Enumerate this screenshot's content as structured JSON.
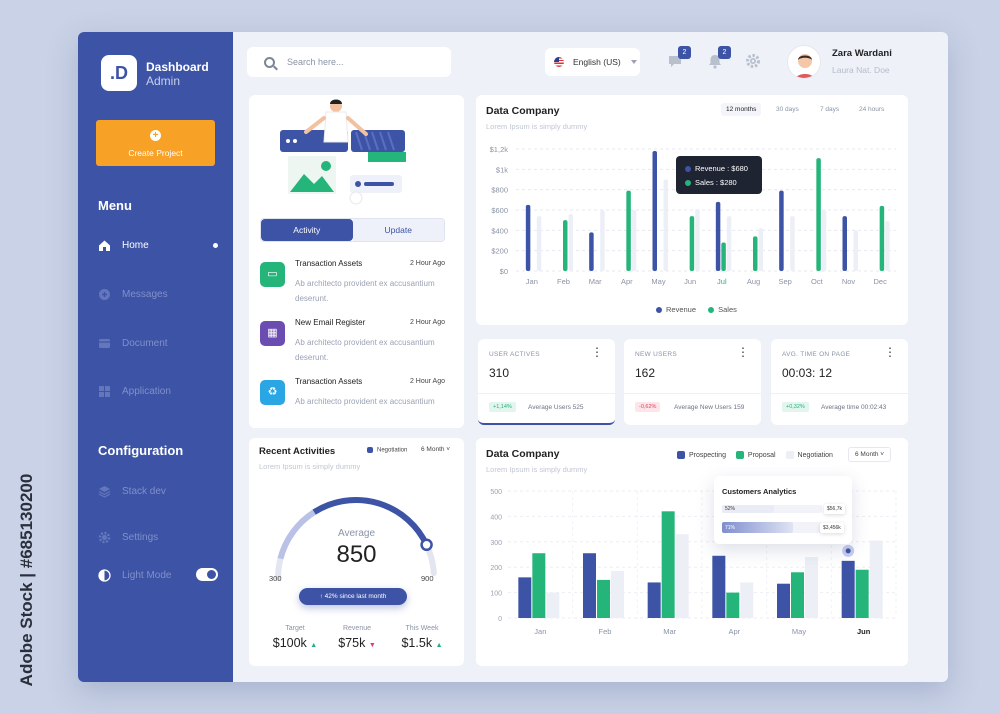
{
  "watermark": {
    "text": "Adobe Stock | #685130200"
  },
  "brand": {
    "logo": ".D",
    "line1": "Dashboard",
    "line2": "Admin"
  },
  "sidebar": {
    "create_label": "Create Project",
    "menu_title": "Menu",
    "items": [
      {
        "label": "Home",
        "icon": "home-icon",
        "active": true
      },
      {
        "label": "Messages",
        "icon": "messages-icon"
      },
      {
        "label": "Document",
        "icon": "document-icon"
      },
      {
        "label": "Application",
        "icon": "grid-icon"
      }
    ],
    "config_title": "Configuration",
    "config_items": [
      {
        "label": "Stack dev",
        "icon": "layers-icon"
      },
      {
        "label": "Settings",
        "icon": "gear-icon"
      },
      {
        "label": "Light Mode",
        "icon": "contrast-icon",
        "toggle_on": true
      }
    ]
  },
  "topbar": {
    "search_placeholder": "Search here...",
    "language": "English (US)",
    "messages_badge": "2",
    "notifications_badge": "2",
    "user_name": "Zara Wardani",
    "user_role": "Laura Nat. Doe"
  },
  "activity_card": {
    "tabs": [
      "Activity",
      "Update"
    ],
    "items": [
      {
        "title": "Transaction Assets",
        "time": "2 Hour Ago",
        "desc": "Ab architecto provident ex accusantium deserunt.",
        "color": "#25b57a"
      },
      {
        "title": "New Email Register",
        "time": "2 Hour Ago",
        "desc": "Ab architecto provident ex accusantium deserunt.",
        "color": "#6b4db1"
      },
      {
        "title": "Transaction Assets",
        "time": "2 Hour Ago",
        "desc": "Ab architecto provident ex accusantium",
        "color": "#2aa6e4"
      }
    ]
  },
  "data_company_1": {
    "title": "Data Company",
    "subtitle": "Lorem Ipsum is simply dummy",
    "ranges": [
      "12 months",
      "30 days",
      "7 days",
      "24 hours"
    ],
    "active_range": "12 months",
    "tooltip": {
      "revenue_label": "Revenue",
      "revenue_value": "$680",
      "sales_label": "Sales",
      "sales_value": "$280"
    },
    "legend": [
      "Revenue",
      "Sales"
    ]
  },
  "stats": [
    {
      "label": "USER ACTIVES",
      "value": "310",
      "change": "+1,14%",
      "note": "Average Users 525",
      "positive": true
    },
    {
      "label": "NEW USERS",
      "value": "162",
      "change": "-0,62%",
      "note": "Average New Users 159",
      "positive": false
    },
    {
      "label": "AVG. TIME ON PAGE",
      "value": "00:03: 12",
      "change": "+0,32%",
      "note": "Average time 00:02:43",
      "positive": true
    }
  ],
  "recent": {
    "title": "Recent Activities",
    "subtitle": "Lorem Ipsum is simply dummy",
    "legend": "Negotiation",
    "period": "6 Month",
    "avg_label": "Average",
    "avg_value": "850",
    "scale_min": "300",
    "scale_max": "900",
    "gauge_fraction": 0.61,
    "pill": "↑  42% since last month",
    "kpis": [
      {
        "label": "Target",
        "value": "$100k",
        "dir": "up"
      },
      {
        "label": "Revenue",
        "value": "$75k",
        "dir": "down"
      },
      {
        "label": "This Week",
        "value": "$1.5k",
        "dir": "up"
      }
    ]
  },
  "data_company_2": {
    "title": "Data Company",
    "subtitle": "Lorem Ipsum is simply dummy",
    "legend": [
      "Prospecting",
      "Proposal",
      "Negotiation"
    ],
    "period": "6 Month"
  },
  "customers_analytics": {
    "title": "Customers Analytics",
    "rows": [
      {
        "pct_label": "52%",
        "value": "$56,7k",
        "fraction": 0.52
      },
      {
        "pct_label": "71%",
        "value": "$3,456k",
        "fraction": 0.71
      }
    ]
  },
  "chart_data": [
    {
      "type": "bar",
      "title": "Data Company",
      "categories": [
        "Jan",
        "Feb",
        "Mar",
        "Apr",
        "May",
        "Jun",
        "Jul",
        "Aug",
        "Sep",
        "Oct",
        "Nov",
        "Dec"
      ],
      "highlight_category": "Jul",
      "ytick_labels": [
        "$0",
        "$200",
        "$400",
        "$600",
        "$800",
        "$1k",
        "$1,2k"
      ],
      "ylim": [
        0,
        1200
      ],
      "series": [
        {
          "name": "Revenue",
          "color": "#3d53a6",
          "values": [
            650,
            0,
            380,
            0,
            1180,
            0,
            680,
            0,
            790,
            0,
            540,
            0
          ]
        },
        {
          "name": "Sales",
          "color": "#25b57a",
          "values": [
            0,
            500,
            0,
            790,
            0,
            540,
            280,
            340,
            0,
            1110,
            0,
            640
          ]
        },
        {
          "color": "#eceff6",
          "values": [
            540,
            560,
            600,
            600,
            900,
            610,
            540,
            420,
            540,
            600,
            400,
            490
          ]
        }
      ],
      "legend": "bottom-center",
      "grid": "dashed horizontal"
    },
    {
      "type": "bar",
      "title": "Data Company",
      "categories": [
        "Jan",
        "Feb",
        "Mar",
        "Apr",
        "May",
        "Jun"
      ],
      "highlight_category": "Jun",
      "yticks": [
        0,
        100,
        200,
        300,
        400,
        500
      ],
      "ylim": [
        0,
        500
      ],
      "series": [
        {
          "name": "Prospecting",
          "color": "#3d53a6",
          "values": [
            160,
            255,
            140,
            245,
            135,
            225
          ]
        },
        {
          "name": "Proposal",
          "color": "#25b57a",
          "values": [
            255,
            150,
            420,
            100,
            180,
            190
          ]
        },
        {
          "name": "Negotiation",
          "color": "#eceff6",
          "values": [
            100,
            185,
            330,
            140,
            240,
            305
          ]
        }
      ],
      "legend": "top-right",
      "grid": "dashed"
    }
  ]
}
